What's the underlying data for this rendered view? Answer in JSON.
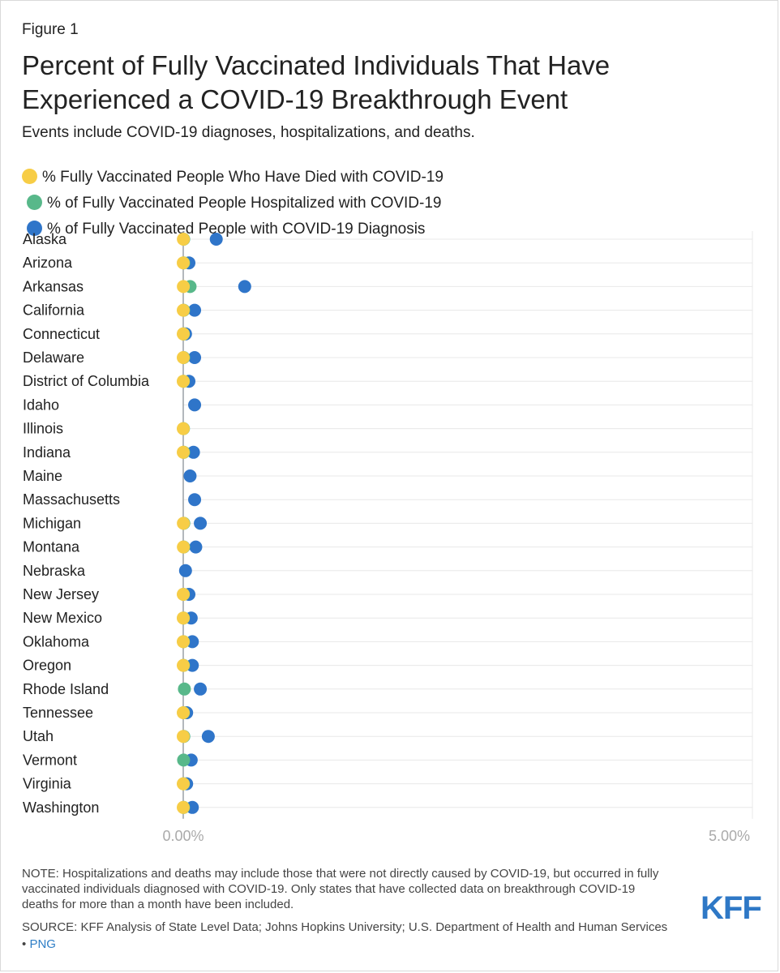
{
  "figure_label": "Figure 1",
  "title": "Percent of Fully Vaccinated Individuals That Have Experienced a COVID-19 Breakthrough Event",
  "subtitle": "Events include COVID-19 diagnoses, hospitalizations, and deaths.",
  "colors": {
    "deaths": "#f7cd46",
    "hospitalized": "#58b88a",
    "diagnosis": "#2f75c9",
    "grid": "#e8e8e8",
    "axis": "#9aa0a6"
  },
  "chart_data": {
    "type": "scatter",
    "orientation": "horizontal-dot-plot",
    "xlim": [
      0,
      5
    ],
    "x_ticks": [
      "0.00%",
      "5.00%"
    ],
    "categories": [
      "Alaska",
      "Arizona",
      "Arkansas",
      "California",
      "Connecticut",
      "Delaware",
      "District of Columbia",
      "Idaho",
      "Illinois",
      "Indiana",
      "Maine",
      "Massachusetts",
      "Michigan",
      "Montana",
      "Nebraska",
      "New Jersey",
      "New Mexico",
      "Oklahoma",
      "Oregon",
      "Rhode Island",
      "Tennessee",
      "Utah",
      "Vermont",
      "Virginia",
      "Washington"
    ],
    "series": [
      {
        "key": "diagnosis",
        "name": "% of Fully Vaccinated People with COVID-19 Diagnosis",
        "values": [
          0.29,
          0.05,
          0.54,
          0.1,
          0.02,
          0.1,
          0.05,
          0.1,
          null,
          0.09,
          0.06,
          0.1,
          0.15,
          0.11,
          0.02,
          0.05,
          0.07,
          0.08,
          0.08,
          0.15,
          0.03,
          0.22,
          0.07,
          0.03,
          0.08
        ]
      },
      {
        "key": "hospitalized",
        "name": "% of Fully Vaccinated People Hospitalized with COVID-19",
        "values": [
          0.004,
          0.004,
          0.06,
          0.004,
          0.002,
          0.004,
          0.002,
          null,
          0.002,
          0.004,
          null,
          null,
          0.005,
          0.004,
          null,
          0.002,
          0.002,
          0.002,
          0.003,
          0.01,
          0.002,
          0.005,
          0.003,
          0.002,
          0.003
        ]
      },
      {
        "key": "deaths",
        "name": "% Fully Vaccinated People Who Have Died with COVID-19",
        "values": [
          0.001,
          0.0,
          0.001,
          0.0,
          0.0,
          0.0,
          0.0,
          null,
          0.0,
          0.0,
          null,
          null,
          0.001,
          0.001,
          null,
          0.0,
          0.0,
          0.0,
          0.0,
          null,
          0.0,
          0.0,
          null,
          0.0,
          0.0
        ]
      }
    ]
  },
  "legend": [
    {
      "key": "deaths",
      "label": "% Fully Vaccinated People Who Have Died with COVID-19"
    },
    {
      "key": "hospitalized",
      "label": "% of Fully Vaccinated People Hospitalized with COVID-19"
    },
    {
      "key": "diagnosis",
      "label": "% of Fully Vaccinated People with COVID-19 Diagnosis"
    }
  ],
  "note": "NOTE: Hospitalizations and deaths may include those that were not directly caused by COVID-19, but occurred in fully vaccinated individuals diagnosed with COVID-19. Only states that have collected data on breakthrough COVID-19 deaths for more than a month have been included.",
  "source_prefix": "SOURCE: KFF Analysis of State Level Data; Johns Hopkins University; U.S. Department of Health and Human Services •",
  "png_link": "PNG",
  "logo": "KFF"
}
